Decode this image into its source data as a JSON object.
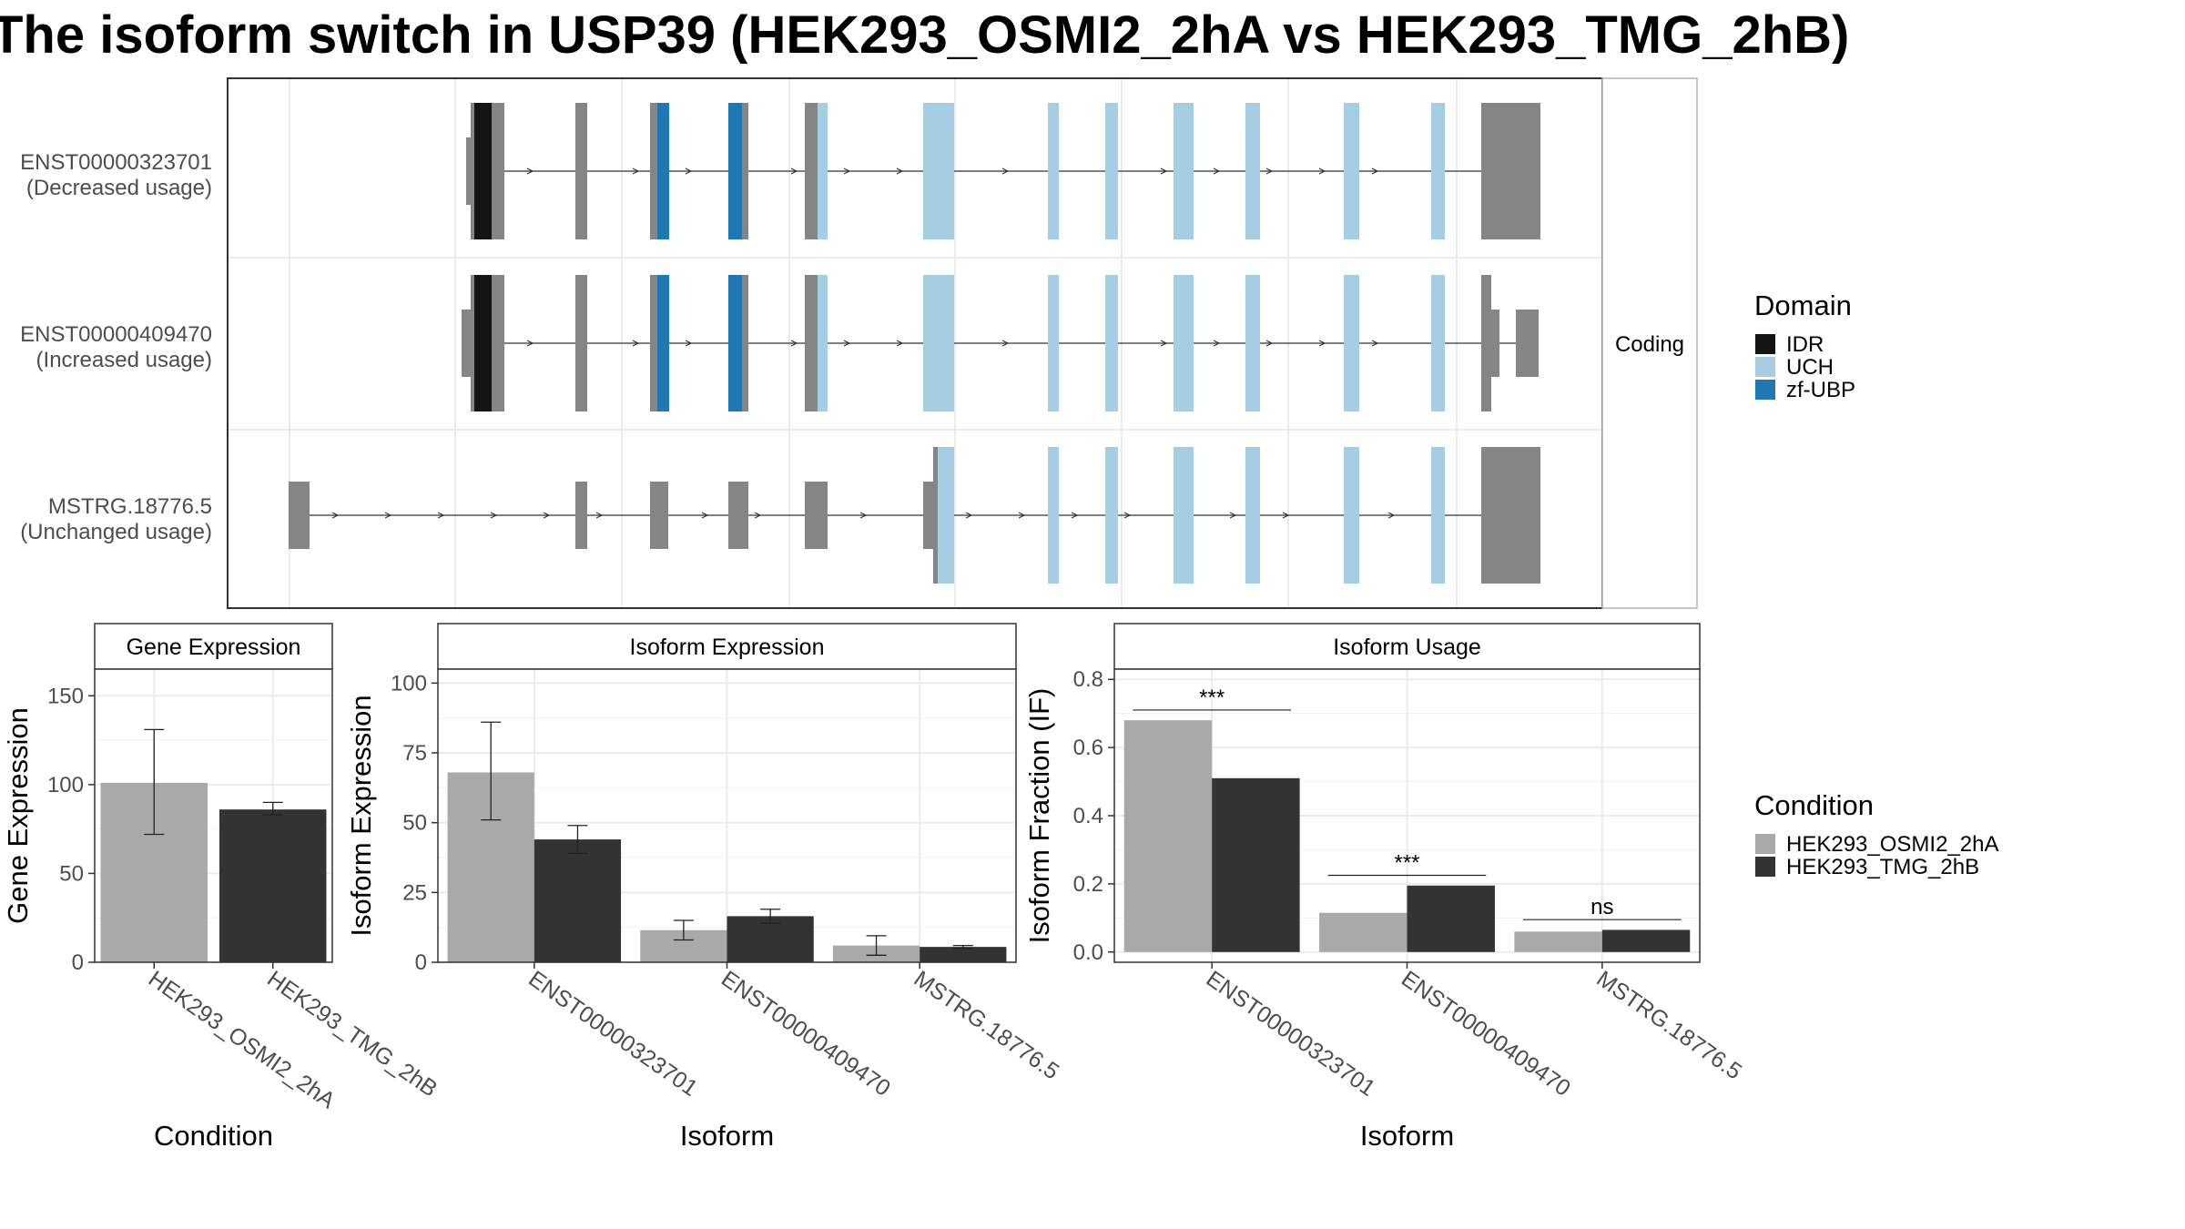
{
  "title": "The isoform switch in USP39 (HEK293_OSMI2_2hA vs HEK293_TMG_2hB)",
  "structure": {
    "strip_label": "Coding",
    "transcripts": [
      {
        "id": "ENST00000323701",
        "usage": "(Decreased usage)"
      },
      {
        "id": "ENST00000409470",
        "usage": "(Increased usage)"
      },
      {
        "id": "MSTRG.18776.5",
        "usage": "(Unchanged usage)"
      }
    ]
  },
  "legend_domain": {
    "title": "Domain",
    "items": [
      {
        "label": "IDR",
        "color": "#141414"
      },
      {
        "label": "UCH",
        "color": "#a6cee3"
      },
      {
        "label": "zf-UBP",
        "color": "#1f78b4"
      }
    ]
  },
  "legend_condition": {
    "title": "Condition",
    "items": [
      {
        "label": "HEK293_OSMI2_2hA",
        "color": "#a9a9a9"
      },
      {
        "label": "HEK293_TMG_2hB",
        "color": "#333333"
      }
    ]
  },
  "chart_data": [
    {
      "type": "bar",
      "title": "Gene Expression",
      "xlabel": "Condition",
      "ylabel": "Gene Expression",
      "categories": [
        "HEK293_OSMI2_2hA",
        "HEK293_TMG_2hB"
      ],
      "values": [
        101,
        86
      ],
      "error_low": [
        72,
        83
      ],
      "error_high": [
        131,
        90
      ],
      "ylim": [
        0,
        165
      ],
      "yticks": [
        0,
        50,
        100,
        150
      ],
      "tick_labels": [
        "0",
        "50",
        "100",
        "150"
      ]
    },
    {
      "type": "bar",
      "title": "Isoform Expression",
      "xlabel": "Isoform",
      "ylabel": "Isoform Expression",
      "categories": [
        "ENST00000323701",
        "ENST00000409470",
        "MSTRG.18776.5"
      ],
      "series": [
        {
          "name": "HEK293_OSMI2_2hA",
          "values": [
            68,
            11.5,
            6
          ],
          "error_low": [
            51,
            8,
            2.5
          ],
          "error_high": [
            86,
            15,
            9.5
          ]
        },
        {
          "name": "HEK293_TMG_2hB",
          "values": [
            44,
            16.5,
            5.5
          ],
          "error_low": [
            39,
            14,
            5
          ],
          "error_high": [
            49,
            19,
            6
          ]
        }
      ],
      "ylim": [
        0,
        105
      ],
      "yticks": [
        0,
        25,
        50,
        75,
        100
      ],
      "tick_labels": [
        "0",
        "25",
        "50",
        "75",
        "100"
      ]
    },
    {
      "type": "bar",
      "title": "Isoform Usage",
      "xlabel": "Isoform",
      "ylabel": "Isoform Fraction (IF)",
      "categories": [
        "ENST00000323701",
        "ENST00000409470",
        "MSTRG.18776.5"
      ],
      "series": [
        {
          "name": "HEK293_OSMI2_2hA",
          "values": [
            0.68,
            0.115,
            0.06
          ]
        },
        {
          "name": "HEK293_TMG_2hB",
          "values": [
            0.51,
            0.195,
            0.065
          ]
        }
      ],
      "significance": [
        "***",
        "***",
        "ns"
      ],
      "ylim": [
        -0.03,
        0.83
      ],
      "yticks": [
        0,
        0.2,
        0.4,
        0.6,
        0.8
      ],
      "tick_labels": [
        "0.0",
        "0.2",
        "0.4",
        "0.6",
        "0.8"
      ]
    }
  ]
}
